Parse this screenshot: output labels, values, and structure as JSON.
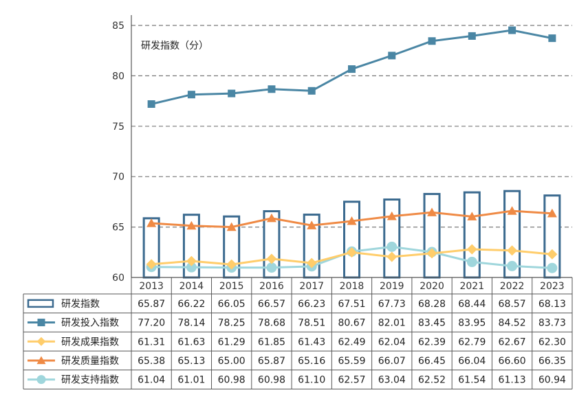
{
  "chart_data": {
    "type": "bar+line",
    "annotation": "研发指数（分）",
    "categories": [
      "2013",
      "2014",
      "2015",
      "2016",
      "2017",
      "2018",
      "2019",
      "2020",
      "2021",
      "2022",
      "2023"
    ],
    "ylim": [
      60,
      85
    ],
    "yticks": [
      60,
      65,
      70,
      75,
      80,
      85
    ],
    "ytick_labels": [
      "60",
      "65",
      "70",
      "75",
      "80",
      "85"
    ],
    "grid": "dashed horizontal",
    "colors": {
      "bar_edge": "#3b6a8f",
      "input": "#4a86a4",
      "output": "#ffcd6b",
      "quality": "#ef8a45",
      "support": "#9fd6dc"
    },
    "series": [
      {
        "name": "研发指数",
        "kind": "bar",
        "values": [
          "65.87",
          "66.22",
          "66.05",
          "66.57",
          "66.23",
          "67.51",
          "67.73",
          "68.28",
          "68.44",
          "68.57",
          "68.13"
        ]
      },
      {
        "name": "研发投入指数",
        "kind": "line",
        "marker": "square",
        "values": [
          "77.20",
          "78.14",
          "78.25",
          "78.68",
          "78.51",
          "80.67",
          "82.01",
          "83.45",
          "83.95",
          "84.52",
          "83.73"
        ]
      },
      {
        "name": "研发成果指数",
        "kind": "line",
        "marker": "diamond",
        "values": [
          "61.31",
          "61.63",
          "61.29",
          "61.85",
          "61.43",
          "62.49",
          "62.04",
          "62.39",
          "62.79",
          "62.67",
          "62.30"
        ]
      },
      {
        "name": "研发质量指数",
        "kind": "line",
        "marker": "triangle",
        "values": [
          "65.38",
          "65.13",
          "65.00",
          "65.87",
          "65.16",
          "65.59",
          "66.07",
          "66.45",
          "66.04",
          "66.60",
          "66.35"
        ]
      },
      {
        "name": "研发支持指数",
        "kind": "line",
        "marker": "circle",
        "values": [
          "61.04",
          "61.01",
          "60.98",
          "60.98",
          "61.10",
          "62.57",
          "63.04",
          "62.52",
          "61.54",
          "61.13",
          "60.94"
        ]
      }
    ]
  }
}
